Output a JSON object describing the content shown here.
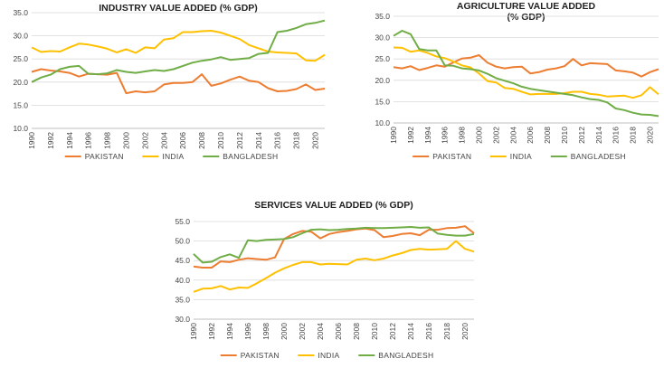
{
  "colors": {
    "pakistan": "#ED7D31",
    "india": "#FFC000",
    "bangladesh": "#70AD47",
    "grid": "#d9d9d9",
    "axis": "#bfbfbf"
  },
  "chart_data": [
    {
      "type": "line",
      "title_lines": [
        "INDUSTRY VALUE ADDED (% GDP)"
      ],
      "xlabel": "",
      "ylabel": "",
      "x": [
        1990,
        1991,
        1992,
        1993,
        1994,
        1995,
        1996,
        1997,
        1998,
        1999,
        2000,
        2001,
        2002,
        2003,
        2004,
        2005,
        2006,
        2007,
        2008,
        2009,
        2010,
        2011,
        2012,
        2013,
        2014,
        2015,
        2016,
        2017,
        2018,
        2019,
        2020,
        2021
      ],
      "xticks": [
        "1990",
        "1992",
        "1994",
        "1996",
        "1998",
        "2000",
        "2002",
        "2004",
        "2006",
        "2008",
        "2010",
        "2012",
        "2014",
        "2016",
        "2018",
        "2020"
      ],
      "yticks": [
        "10.0",
        "15.0",
        "20.0",
        "25.0",
        "30.0",
        "35.0"
      ],
      "ylim": [
        10,
        35
      ],
      "grid": true,
      "legend_position": "bottom",
      "series": [
        {
          "name": "PAKISTAN",
          "color": "#ED7D31",
          "values": [
            22.2,
            22.8,
            22.5,
            22.3,
            22.0,
            21.2,
            21.8,
            21.7,
            21.6,
            22.0,
            17.6,
            18.0,
            17.8,
            18.0,
            19.5,
            19.8,
            19.8,
            20.0,
            21.7,
            19.2,
            19.7,
            20.5,
            21.2,
            20.3,
            20.0,
            18.7,
            18.0,
            18.1,
            18.5,
            19.5,
            18.3,
            18.6
          ]
        },
        {
          "name": "INDIA",
          "color": "#FFC000",
          "values": [
            27.5,
            26.5,
            26.7,
            26.6,
            27.5,
            28.3,
            28.1,
            27.7,
            27.2,
            26.4,
            27.1,
            26.3,
            27.5,
            27.3,
            29.2,
            29.5,
            30.8,
            30.8,
            31.0,
            31.1,
            30.7,
            30.0,
            29.3,
            28.0,
            27.3,
            26.6,
            26.4,
            26.3,
            26.2,
            24.7,
            24.6,
            25.9
          ]
        },
        {
          "name": "BANGLADESH",
          "color": "#70AD47",
          "values": [
            20.0,
            21.0,
            21.6,
            22.8,
            23.3,
            23.5,
            21.8,
            21.7,
            21.9,
            22.6,
            22.2,
            22.0,
            22.3,
            22.6,
            22.4,
            22.8,
            23.5,
            24.2,
            24.6,
            24.9,
            25.4,
            24.8,
            25.0,
            25.2,
            26.1,
            26.3,
            30.8,
            31.1,
            31.7,
            32.5,
            32.8,
            33.3
          ]
        }
      ]
    },
    {
      "type": "line",
      "title_lines": [
        "AGRICULTURE VALUE ADDED",
        "(% GDP)"
      ],
      "xlabel": "",
      "ylabel": "",
      "x": [
        1990,
        1991,
        1992,
        1993,
        1994,
        1995,
        1996,
        1997,
        1998,
        1999,
        2000,
        2001,
        2002,
        2003,
        2004,
        2005,
        2006,
        2007,
        2008,
        2009,
        2010,
        2011,
        2012,
        2013,
        2014,
        2015,
        2016,
        2017,
        2018,
        2019,
        2020,
        2021
      ],
      "xticks": [
        "1990",
        "1992",
        "1994",
        "1996",
        "1998",
        "2000",
        "2002",
        "2004",
        "2006",
        "2008",
        "2010",
        "2012",
        "2014",
        "2016",
        "2018",
        "2020"
      ],
      "yticks": [
        "10.0",
        "15.0",
        "20.0",
        "25.0",
        "30.0",
        "35.0"
      ],
      "ylim": [
        10,
        35
      ],
      "grid": true,
      "legend_position": "bottom",
      "series": [
        {
          "name": "PAKISTAN",
          "color": "#ED7D31",
          "values": [
            23.1,
            22.8,
            23.3,
            22.4,
            22.9,
            23.5,
            23.2,
            24.2,
            25.1,
            25.3,
            25.9,
            24.1,
            23.2,
            22.8,
            23.1,
            23.2,
            21.6,
            21.9,
            22.5,
            22.8,
            23.3,
            25.0,
            23.5,
            24.0,
            23.9,
            23.8,
            22.3,
            22.1,
            21.8,
            20.9,
            21.9,
            22.6
          ]
        },
        {
          "name": "INDIA",
          "color": "#FFC000",
          "values": [
            27.7,
            27.6,
            26.7,
            27.0,
            26.4,
            25.6,
            25.2,
            24.4,
            23.5,
            23.0,
            21.6,
            19.8,
            19.5,
            18.2,
            18.0,
            17.3,
            16.7,
            16.8,
            16.8,
            16.8,
            17.0,
            17.3,
            17.3,
            16.8,
            16.6,
            16.2,
            16.3,
            16.4,
            15.9,
            16.5,
            18.4,
            16.7
          ]
        },
        {
          "name": "BANGLADESH",
          "color": "#70AD47",
          "values": [
            30.4,
            31.6,
            30.8,
            27.3,
            27.0,
            27.0,
            23.5,
            23.4,
            22.8,
            22.6,
            22.3,
            21.5,
            20.5,
            19.9,
            19.3,
            18.5,
            18.0,
            17.7,
            17.4,
            17.1,
            16.8,
            16.5,
            16.0,
            15.6,
            15.4,
            14.8,
            13.4,
            13.0,
            12.4,
            12.0,
            11.9,
            11.6
          ]
        }
      ]
    },
    {
      "type": "line",
      "title_lines": [
        "SERVICES VALUE ADDED (% GDP)"
      ],
      "xlabel": "",
      "ylabel": "",
      "x": [
        1990,
        1991,
        1992,
        1993,
        1994,
        1995,
        1996,
        1997,
        1998,
        1999,
        2000,
        2001,
        2002,
        2003,
        2004,
        2005,
        2006,
        2007,
        2008,
        2009,
        2010,
        2011,
        2012,
        2013,
        2014,
        2015,
        2016,
        2017,
        2018,
        2019,
        2020,
        2021
      ],
      "xticks": [
        "1990",
        "1992",
        "1994",
        "1996",
        "1998",
        "2000",
        "2002",
        "2004",
        "2006",
        "2008",
        "2010",
        "2012",
        "2014",
        "2016",
        "2018",
        "2020"
      ],
      "yticks": [
        "30.0",
        "35.0",
        "40.0",
        "45.0",
        "50.0",
        "55.0"
      ],
      "ylim": [
        30,
        55
      ],
      "grid": true,
      "legend_position": "bottom",
      "series": [
        {
          "name": "PAKISTAN",
          "color": "#ED7D31",
          "values": [
            43.5,
            43.2,
            43.2,
            44.8,
            44.6,
            45.2,
            45.6,
            45.4,
            45.2,
            45.8,
            50.5,
            51.8,
            52.6,
            52.4,
            50.7,
            51.8,
            52.3,
            52.6,
            53.0,
            53.2,
            52.8,
            51.0,
            51.3,
            51.8,
            52.0,
            51.5,
            52.9,
            52.9,
            53.3,
            53.4,
            53.8,
            52.0
          ]
        },
        {
          "name": "INDIA",
          "color": "#FFC000",
          "values": [
            37.0,
            37.8,
            37.9,
            38.5,
            37.6,
            38.1,
            38.0,
            39.2,
            40.5,
            41.9,
            43.0,
            43.9,
            44.6,
            44.6,
            44.0,
            44.2,
            44.1,
            44.0,
            45.2,
            45.5,
            45.1,
            45.5,
            46.3,
            46.9,
            47.7,
            48.0,
            47.8,
            47.9,
            48.0,
            50.0,
            48.0,
            47.3
          ]
        },
        {
          "name": "BANGLADESH",
          "color": "#70AD47",
          "values": [
            46.7,
            44.5,
            44.7,
            45.9,
            46.6,
            45.7,
            50.2,
            50.0,
            50.3,
            50.4,
            50.5,
            51.0,
            52.0,
            52.9,
            53.0,
            52.8,
            52.9,
            53.1,
            53.2,
            53.4,
            53.3,
            53.3,
            53.4,
            53.5,
            53.6,
            53.4,
            53.5,
            51.9,
            51.6,
            51.4,
            51.4,
            51.8
          ]
        }
      ]
    }
  ]
}
